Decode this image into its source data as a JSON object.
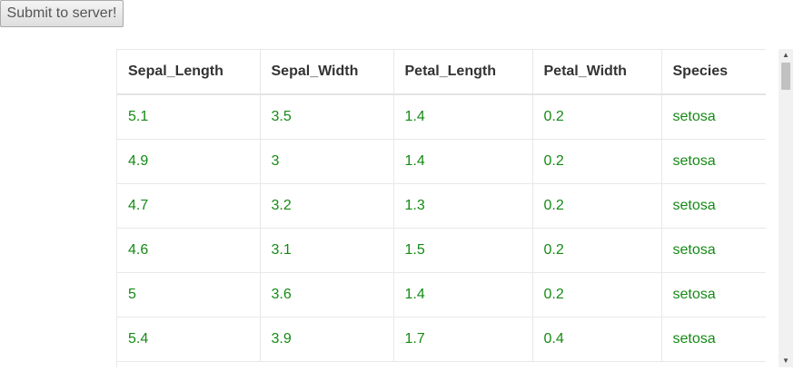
{
  "toolbar": {
    "submit_label": "Submit to server!"
  },
  "table": {
    "columns": [
      "Sepal_Length",
      "Sepal_Width",
      "Petal_Length",
      "Petal_Width",
      "Species"
    ],
    "rows": [
      [
        "5.1",
        "3.5",
        "1.4",
        "0.2",
        "setosa"
      ],
      [
        "4.9",
        "3",
        "1.4",
        "0.2",
        "setosa"
      ],
      [
        "4.7",
        "3.2",
        "1.3",
        "0.2",
        "setosa"
      ],
      [
        "4.6",
        "3.1",
        "1.5",
        "0.2",
        "setosa"
      ],
      [
        "5",
        "3.6",
        "1.4",
        "0.2",
        "setosa"
      ],
      [
        "5.4",
        "3.9",
        "1.7",
        "0.4",
        "setosa"
      ]
    ]
  },
  "colors": {
    "cell_text": "#158a15",
    "header_text": "#333333"
  },
  "icons": {
    "scroll_up": "scroll-up-arrow-icon",
    "scroll_down": "scroll-down-arrow-icon"
  }
}
